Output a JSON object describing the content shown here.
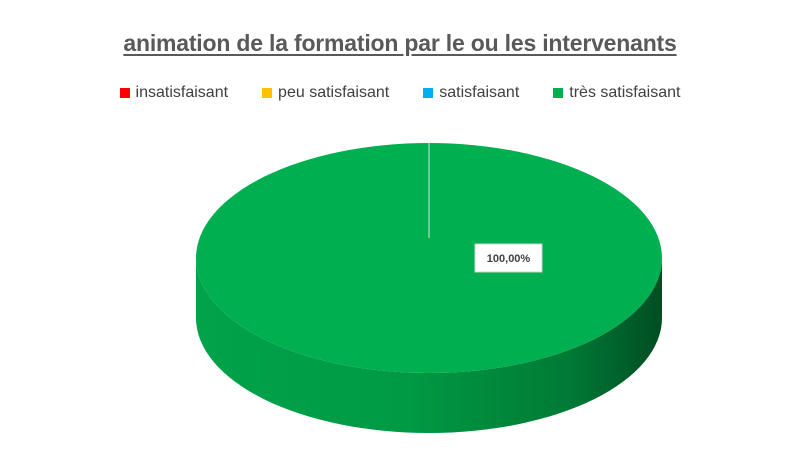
{
  "chart_data": {
    "type": "pie",
    "title": "animation de la formation par le ou les intervenants",
    "categories": [
      "insatisfaisant",
      "peu satisfaisant",
      "satisfaisant",
      "très satisfaisant"
    ],
    "values": [
      0,
      0,
      0,
      100
    ],
    "data_labels": [
      "",
      "",
      "",
      "100,00%"
    ],
    "colors": [
      "#ff0000",
      "#ffc000",
      "#00b0f0",
      "#00b050"
    ],
    "legend_position": "top",
    "style": "3d"
  }
}
